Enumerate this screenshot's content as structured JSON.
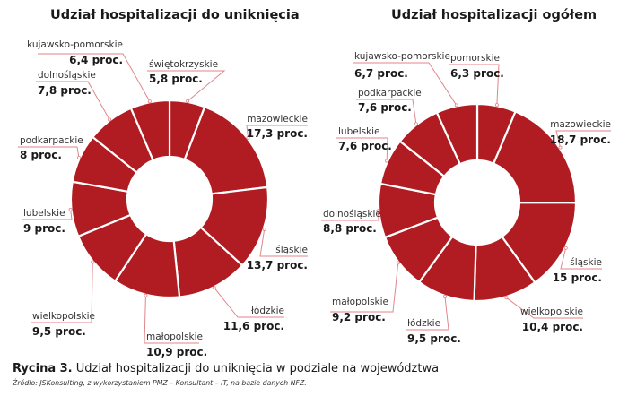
{
  "chart_data": [
    {
      "type": "pie",
      "subtype": "donut",
      "title": "Udział hospitalizacji do uniknięcia",
      "unit": "proc.",
      "slices": [
        {
          "label": "świętokrzyskie",
          "value": 5.8,
          "value_text": "5,8 proc."
        },
        {
          "label": "mazowieckie",
          "value": 17.3,
          "value_text": "17,3 proc."
        },
        {
          "label": "śląskie",
          "value": 13.7,
          "value_text": "13,7 proc."
        },
        {
          "label": "łódzkie",
          "value": 11.6,
          "value_text": "11,6 proc."
        },
        {
          "label": "małopolskie",
          "value": 10.9,
          "value_text": "10,9 proc."
        },
        {
          "label": "wielkopolskie",
          "value": 9.5,
          "value_text": "9,5 proc."
        },
        {
          "label": "lubelskie",
          "value": 9.0,
          "value_text": "9 proc."
        },
        {
          "label": "podkarpackie",
          "value": 8.0,
          "value_text": "8 proc."
        },
        {
          "label": "dolnośląskie",
          "value": 7.8,
          "value_text": "7,8 proc."
        },
        {
          "label": "kujawsko-pomorskie",
          "value": 6.4,
          "value_text": "6,4 proc."
        }
      ]
    },
    {
      "type": "pie",
      "subtype": "donut",
      "title": "Udział hospitalizacji ogółem",
      "unit": "proc.",
      "slices": [
        {
          "label": "pomorskie",
          "value": 6.3,
          "value_text": "6,3 proc."
        },
        {
          "label": "mazowieckie",
          "value": 18.7,
          "value_text": "18,7 proc."
        },
        {
          "label": "śląskie",
          "value": 15.0,
          "value_text": "15 proc."
        },
        {
          "label": "wielkopolskie",
          "value": 10.4,
          "value_text": "10,4 proc."
        },
        {
          "label": "łódzkie",
          "value": 9.5,
          "value_text": "9,5 proc."
        },
        {
          "label": "małopolskie",
          "value": 9.2,
          "value_text": "9,2 proc."
        },
        {
          "label": "dolnośląskie",
          "value": 8.8,
          "value_text": "8,8 proc."
        },
        {
          "label": "lubelskie",
          "value": 7.6,
          "value_text": "7,6 proc."
        },
        {
          "label": "podkarpackie",
          "value": 7.6,
          "value_text": "7,6 proc."
        },
        {
          "label": "kujawsko-pomorskie",
          "value": 6.7,
          "value_text": "6,7 proc."
        }
      ]
    }
  ],
  "colors": {
    "slice_fill": "#b01c22",
    "slice_separator": "#ffffff",
    "leader_line": "#e0868a"
  },
  "caption": {
    "figure_label": "Rycina 3.",
    "text": "Udział hospitalizacji do uniknięcia w podziale na województwa"
  },
  "source": "Źródło: JSKonsulting, z wykorzystaniem PMZ – Konsultant – IT, na bazie danych NFZ."
}
